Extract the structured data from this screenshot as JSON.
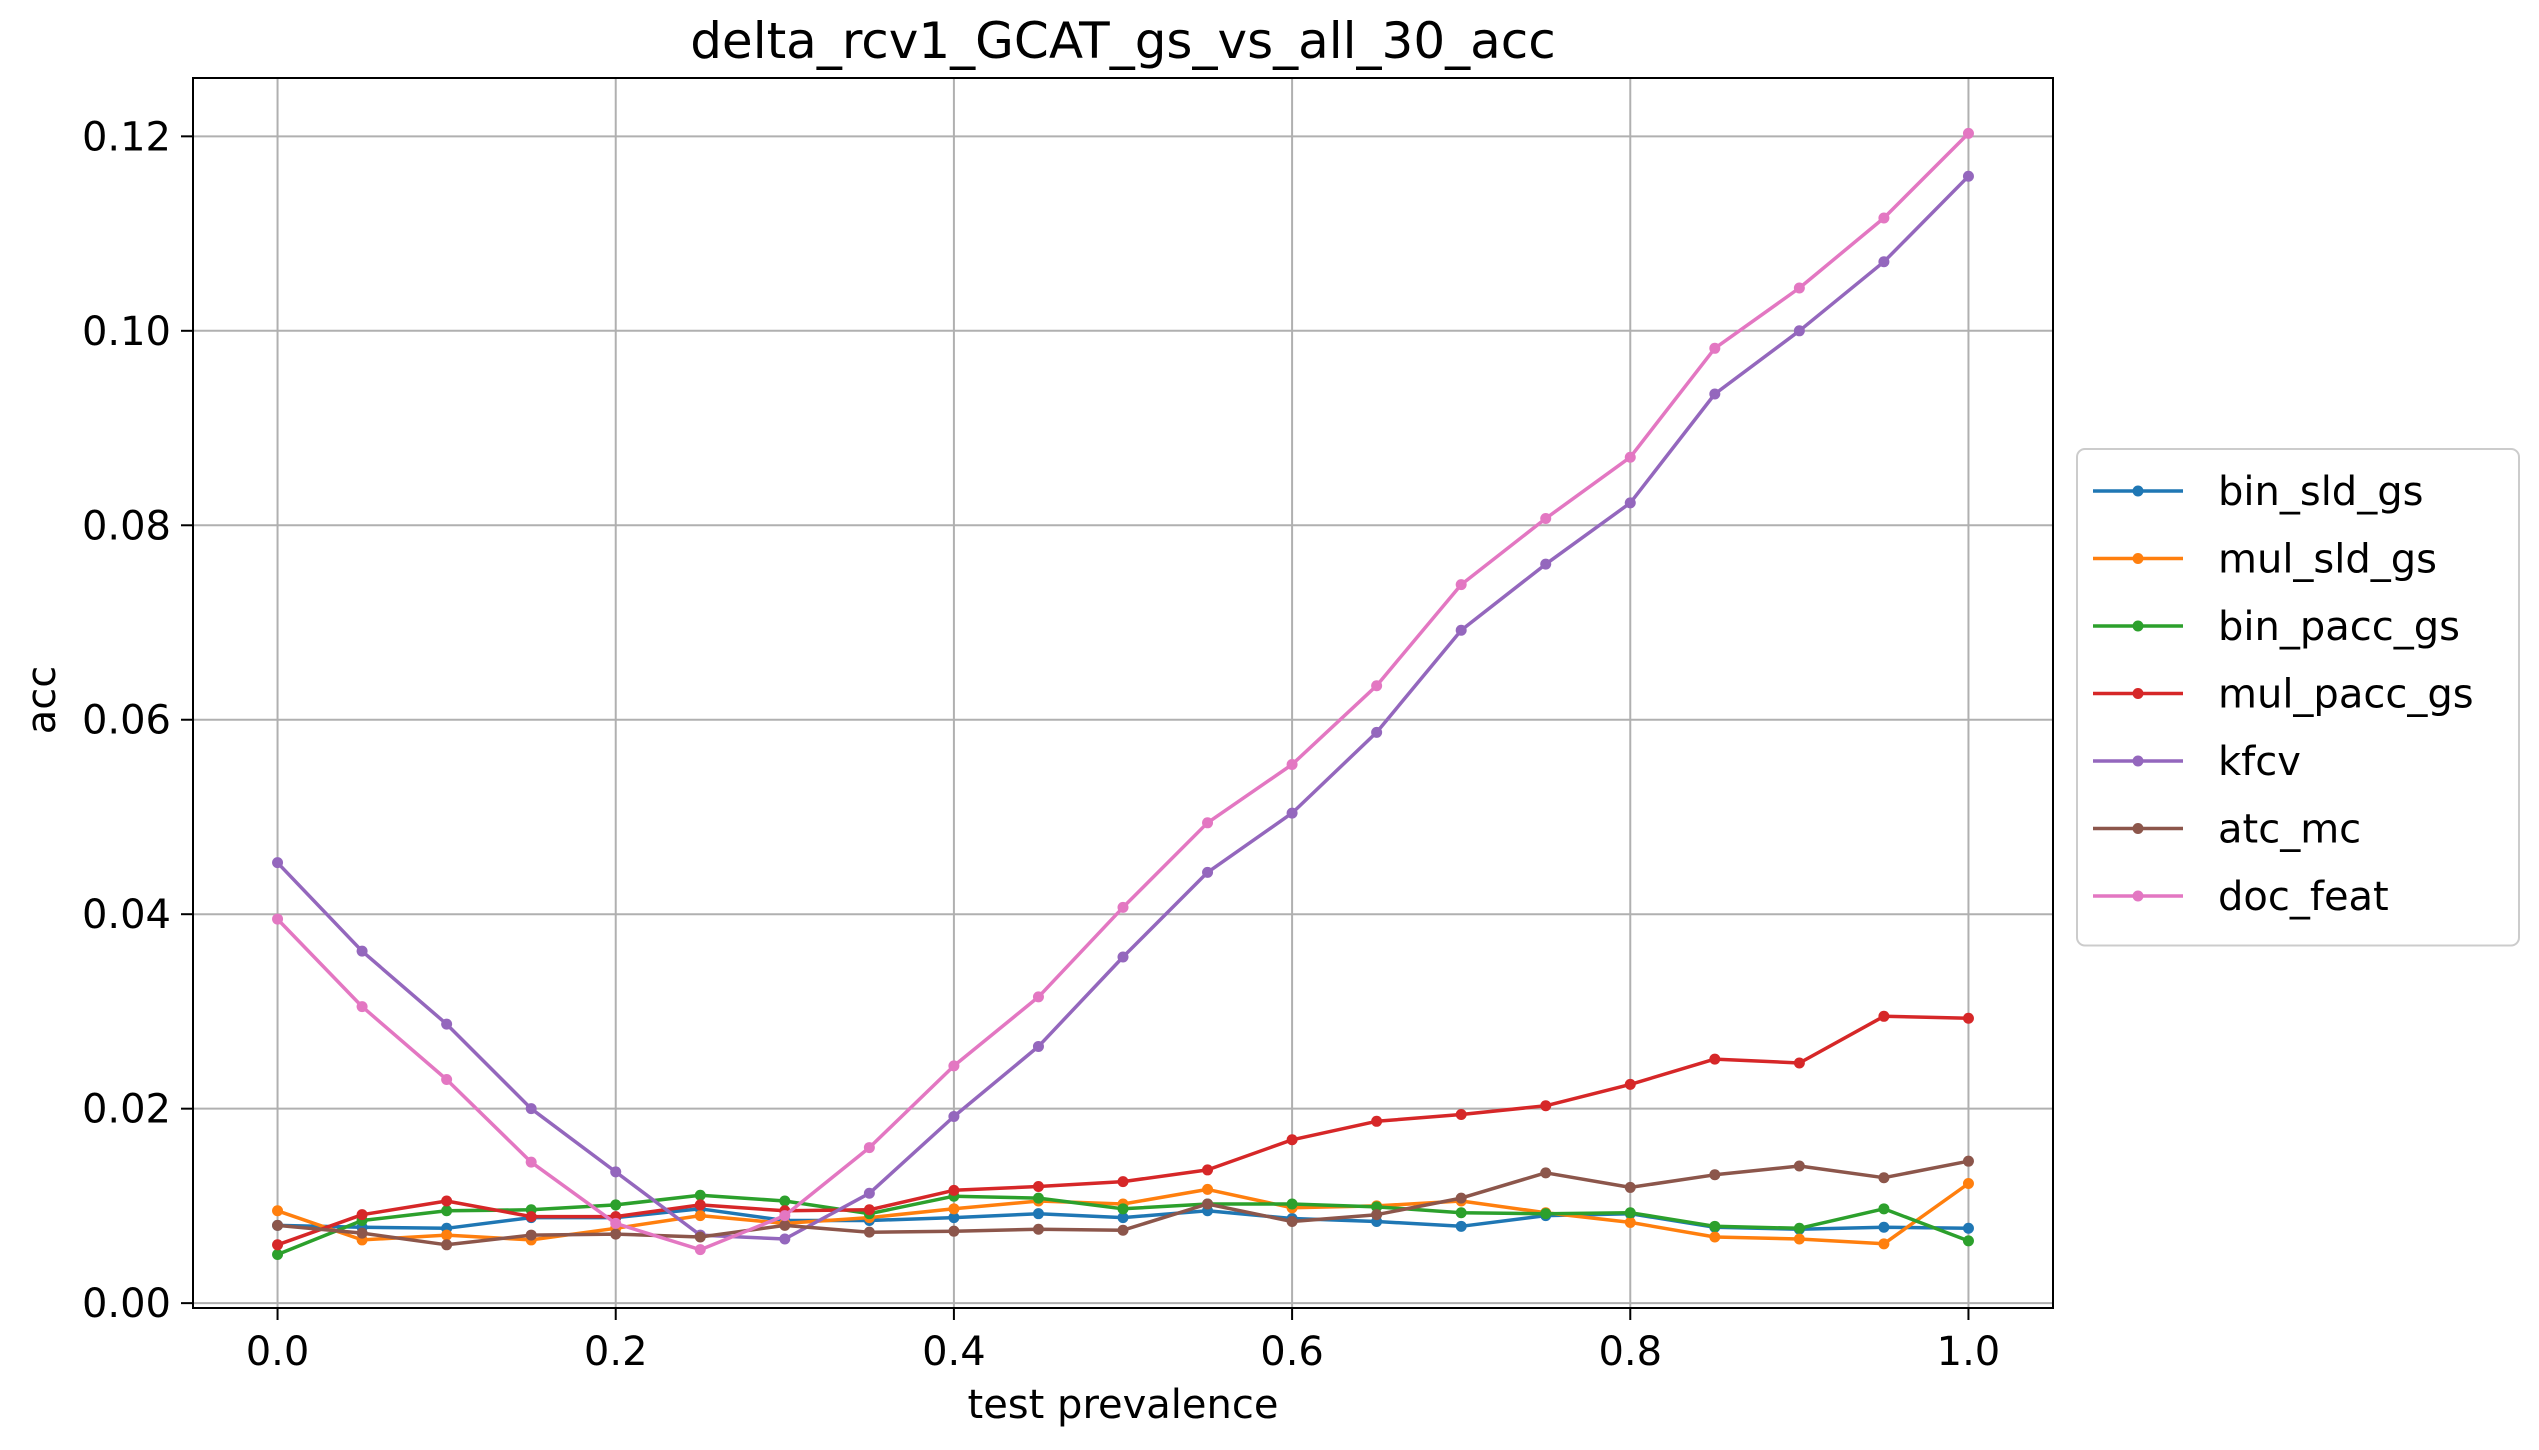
{
  "chart_data": {
    "type": "line",
    "title": "delta_rcv1_GCAT_gs_vs_all_30_acc",
    "xlabel": "test prevalence",
    "ylabel": "acc",
    "xlim": [
      -0.05,
      1.05
    ],
    "ylim": [
      -0.0005,
      0.126
    ],
    "xticks": [
      0.0,
      0.2,
      0.4,
      0.6,
      0.8,
      1.0
    ],
    "xtick_labels": [
      "0.0",
      "0.2",
      "0.4",
      "0.6",
      "0.8",
      "1.0"
    ],
    "yticks": [
      0.0,
      0.02,
      0.04,
      0.06,
      0.08,
      0.1,
      0.12
    ],
    "ytick_labels": [
      "0.00",
      "0.02",
      "0.04",
      "0.06",
      "0.08",
      "0.10",
      "0.12"
    ],
    "grid": true,
    "legend_position": "outside-right",
    "x": [
      0.0,
      0.05,
      0.1,
      0.15,
      0.2,
      0.25,
      0.3,
      0.35,
      0.4,
      0.45,
      0.5,
      0.55,
      0.6,
      0.65,
      0.7,
      0.75,
      0.8,
      0.85,
      0.9,
      0.95,
      1.0
    ],
    "series": [
      {
        "name": "bin_sld_gs",
        "color": "#1f77b4",
        "values": [
          0.008,
          0.0078,
          0.0077,
          0.0088,
          0.0088,
          0.0097,
          0.0085,
          0.0085,
          0.0088,
          0.0092,
          0.0088,
          0.0095,
          0.0087,
          0.0084,
          0.0079,
          0.009,
          0.0092,
          0.0078,
          0.0076,
          0.0078,
          0.0077
        ]
      },
      {
        "name": "mul_sld_gs",
        "color": "#ff7f0e",
        "values": [
          0.0095,
          0.0065,
          0.007,
          0.0065,
          0.0077,
          0.009,
          0.0082,
          0.0088,
          0.0097,
          0.0105,
          0.0102,
          0.0117,
          0.0098,
          0.01,
          0.0105,
          0.0093,
          0.0083,
          0.0068,
          0.0066,
          0.0061,
          0.0123
        ]
      },
      {
        "name": "bin_pacc_gs",
        "color": "#2ca02c",
        "values": [
          0.005,
          0.0085,
          0.0095,
          0.0096,
          0.0101,
          0.0111,
          0.0105,
          0.0092,
          0.011,
          0.0108,
          0.0097,
          0.0102,
          0.0102,
          0.0099,
          0.0093,
          0.0092,
          0.0093,
          0.0079,
          0.0077,
          0.0097,
          0.0064
        ]
      },
      {
        "name": "mul_pacc_gs",
        "color": "#d62728",
        "values": [
          0.006,
          0.0091,
          0.0105,
          0.0089,
          0.0089,
          0.0101,
          0.0095,
          0.0096,
          0.0116,
          0.012,
          0.0125,
          0.0137,
          0.0168,
          0.0187,
          0.0194,
          0.0203,
          0.0225,
          0.0251,
          0.0247,
          0.0295,
          0.0293
        ]
      },
      {
        "name": "kfcv",
        "color": "#9467bd",
        "values": [
          0.0453,
          0.0362,
          0.0287,
          0.02,
          0.0135,
          0.007,
          0.0066,
          0.0113,
          0.0192,
          0.0264,
          0.0356,
          0.0443,
          0.0504,
          0.0587,
          0.0692,
          0.076,
          0.0823,
          0.0935,
          0.1,
          0.1071,
          0.1159
        ]
      },
      {
        "name": "atc_mc",
        "color": "#8c564b",
        "values": [
          0.008,
          0.0072,
          0.006,
          0.007,
          0.0071,
          0.0068,
          0.008,
          0.0073,
          0.0074,
          0.0076,
          0.0075,
          0.0102,
          0.0084,
          0.0091,
          0.0108,
          0.0134,
          0.0119,
          0.0132,
          0.0141,
          0.0129,
          0.0146
        ]
      },
      {
        "name": "doc_feat",
        "color": "#e377c2",
        "values": [
          0.0395,
          0.0305,
          0.023,
          0.0145,
          0.0082,
          0.0055,
          0.009,
          0.016,
          0.0244,
          0.0315,
          0.0407,
          0.0494,
          0.0554,
          0.0635,
          0.0739,
          0.0807,
          0.087,
          0.0982,
          0.1044,
          0.1116,
          0.1203
        ]
      }
    ]
  }
}
